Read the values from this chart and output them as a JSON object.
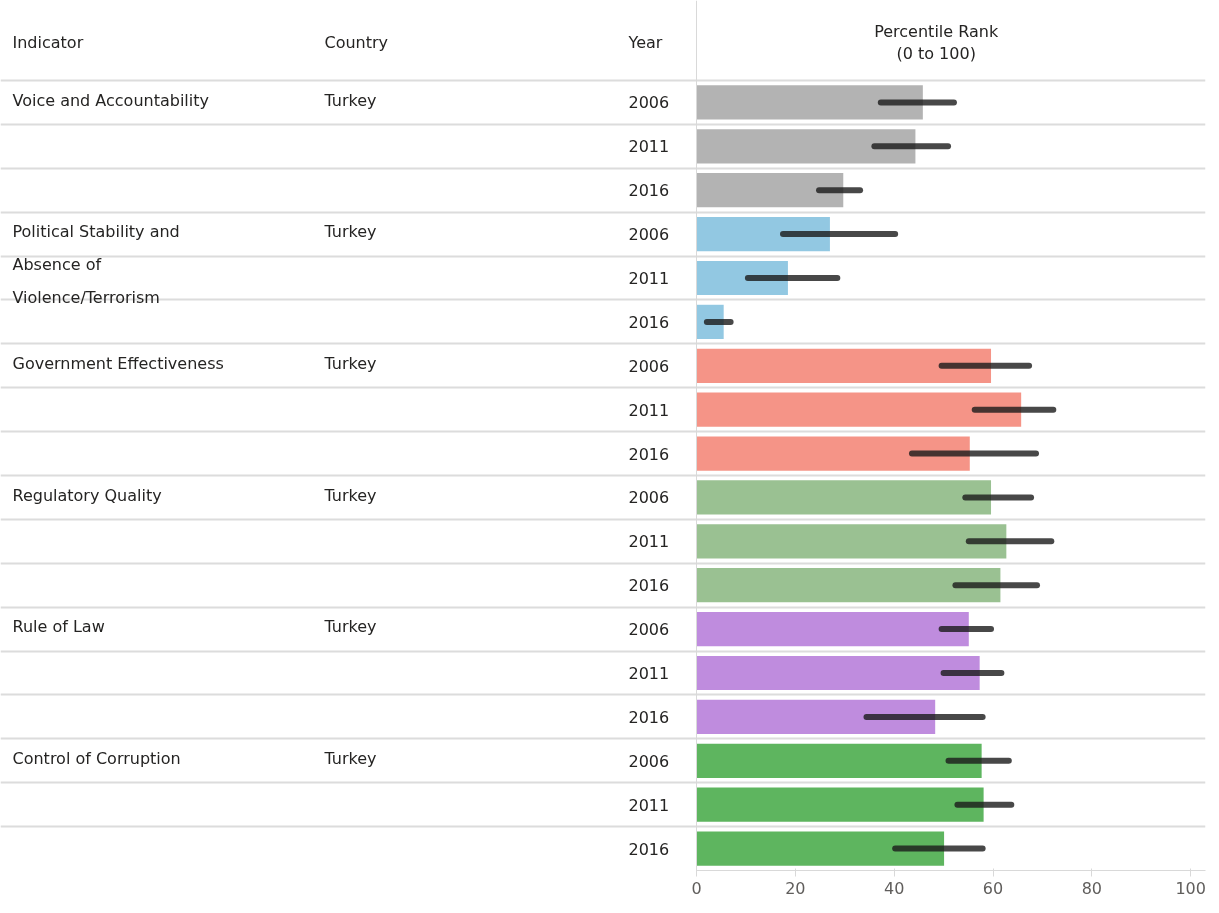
{
  "chart_data": {
    "type": "bar",
    "orientation": "horizontal",
    "xlabel": "Percentile Rank\n(0 to 100)",
    "categories": [
      "2006",
      "2011",
      "2016",
      "2006",
      "2011",
      "2016",
      "2006",
      "2011",
      "2016",
      "2006",
      "2011",
      "2016",
      "2006",
      "2011",
      "2016",
      "2006",
      "2011",
      "2016"
    ],
    "series": [
      {
        "color": "#b3b3b3",
        "values": [
          45.8,
          44.3,
          29.7,
          null,
          null,
          null,
          null,
          null,
          null,
          null,
          null,
          null,
          null,
          null,
          null,
          null,
          null,
          null
        ],
        "errors": [
          [
            37.3,
            52.1
          ],
          [
            36.0,
            50.9
          ],
          [
            24.8,
            33.1
          ],
          null,
          null,
          null,
          null,
          null,
          null,
          null,
          null,
          null,
          null,
          null,
          null,
          null,
          null,
          null
        ]
      },
      {
        "color": "#92c8e2",
        "values": [
          null,
          null,
          null,
          27.0,
          18.5,
          5.5,
          null,
          null,
          null,
          null,
          null,
          null,
          null,
          null,
          null,
          null,
          null,
          null
        ],
        "errors": [
          null,
          null,
          null,
          [
            17.5,
            40.2
          ],
          [
            10.4,
            28.5
          ],
          [
            2.1,
            6.9
          ],
          null,
          null,
          null,
          null,
          null,
          null,
          null,
          null,
          null,
          null,
          null,
          null
        ]
      },
      {
        "color": "#f59487",
        "values": [
          null,
          null,
          null,
          null,
          null,
          null,
          59.6,
          65.7,
          55.3,
          null,
          null,
          null,
          null,
          null,
          null,
          null,
          null,
          null
        ],
        "errors": [
          null,
          null,
          null,
          null,
          null,
          null,
          [
            49.6,
            67.3
          ],
          [
            56.3,
            72.2
          ],
          [
            43.6,
            68.7
          ],
          null,
          null,
          null,
          null,
          null,
          null,
          null,
          null,
          null
        ]
      },
      {
        "color": "#9ac192",
        "values": [
          null,
          null,
          null,
          null,
          null,
          null,
          null,
          null,
          null,
          59.6,
          62.7,
          61.5,
          null,
          null,
          null,
          null,
          null,
          null
        ],
        "errors": [
          null,
          null,
          null,
          null,
          null,
          null,
          null,
          null,
          null,
          [
            54.4,
            67.7
          ],
          [
            55.1,
            71.8
          ],
          [
            52.4,
            68.9
          ],
          null,
          null,
          null,
          null,
          null,
          null
        ]
      },
      {
        "color": "#bf8cde",
        "values": [
          null,
          null,
          null,
          null,
          null,
          null,
          null,
          null,
          null,
          null,
          null,
          null,
          55.1,
          57.3,
          48.3,
          null,
          null,
          null
        ],
        "errors": [
          null,
          null,
          null,
          null,
          null,
          null,
          null,
          null,
          null,
          null,
          null,
          null,
          [
            49.6,
            59.6
          ],
          [
            50.0,
            61.7
          ],
          [
            34.4,
            57.9
          ],
          null,
          null,
          null
        ]
      },
      {
        "color": "#5eb55f",
        "values": [
          null,
          null,
          null,
          null,
          null,
          null,
          null,
          null,
          null,
          null,
          null,
          null,
          null,
          null,
          null,
          57.7,
          58.1,
          50.1
        ],
        "errors": [
          null,
          null,
          null,
          null,
          null,
          null,
          null,
          null,
          null,
          null,
          null,
          null,
          null,
          null,
          null,
          [
            51.0,
            63.2
          ],
          [
            52.8,
            63.7
          ],
          [
            40.2,
            57.9
          ]
        ]
      }
    ],
    "annotations": [
      "Indicator",
      "Country",
      "Year",
      "Voice and Accountability",
      "Turkey",
      "Political Stability and Absence of Violence/Terrorism",
      "Turkey",
      "Government Effectiveness",
      "Turkey",
      "Regulatory Quality",
      "Turkey",
      "Rule of Law",
      "Turkey",
      "Control of Corruption",
      "Turkey"
    ],
    "xlim": [
      0,
      103
    ],
    "xticks": [
      0,
      20,
      40,
      60,
      80,
      100
    ],
    "grid": "y",
    "legend": false
  }
}
